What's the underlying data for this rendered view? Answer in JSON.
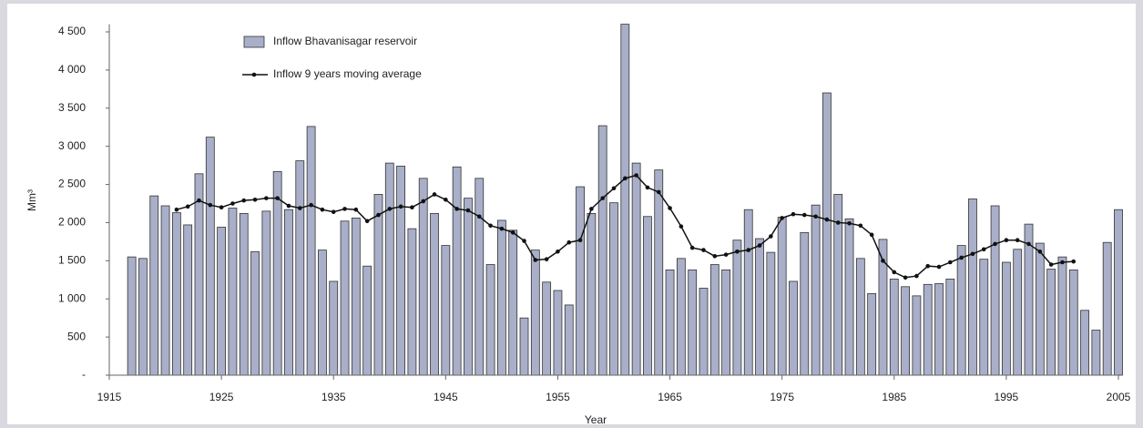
{
  "chart_data": {
    "type": "bar",
    "xlabel": "Year",
    "ylabel": "Mm³",
    "x": [
      1917,
      1918,
      1919,
      1920,
      1921,
      1922,
      1923,
      1924,
      1925,
      1926,
      1927,
      1928,
      1929,
      1930,
      1931,
      1932,
      1933,
      1934,
      1935,
      1936,
      1937,
      1938,
      1939,
      1940,
      1941,
      1942,
      1943,
      1944,
      1945,
      1946,
      1947,
      1948,
      1949,
      1950,
      1951,
      1952,
      1953,
      1954,
      1955,
      1956,
      1957,
      1958,
      1959,
      1960,
      1961,
      1962,
      1963,
      1964,
      1965,
      1966,
      1967,
      1968,
      1969,
      1970,
      1971,
      1972,
      1973,
      1974,
      1975,
      1976,
      1977,
      1978,
      1979,
      1980,
      1981,
      1982,
      1983,
      1984,
      1985,
      1986,
      1987,
      1988,
      1989,
      1990,
      1991,
      1992,
      1993,
      1994,
      1995,
      1996,
      1997,
      1998,
      1999,
      2000,
      2001,
      2002,
      2003,
      2004,
      2005
    ],
    "series": [
      {
        "name": "Inflow Bhavanisagar reservoir",
        "type": "bar",
        "color": "#a9afc9",
        "values": [
          1550,
          1530,
          2350,
          2220,
          2130,
          1970,
          2640,
          3120,
          1940,
          2190,
          2120,
          1620,
          2150,
          2670,
          2170,
          2810,
          3260,
          1640,
          1230,
          2020,
          2060,
          1430,
          2370,
          2780,
          2740,
          1920,
          2580,
          2120,
          1700,
          2730,
          2320,
          2580,
          1450,
          2030,
          1900,
          750,
          1640,
          1220,
          1110,
          920,
          2470,
          2120,
          3270,
          2260,
          4600,
          2780,
          2080,
          2690,
          1380,
          1530,
          1380,
          1140,
          1450,
          1380,
          1770,
          2170,
          1790,
          1610,
          2070,
          1230,
          1870,
          2230,
          3700,
          2370,
          2050,
          1530,
          1070,
          1780,
          1260,
          1160,
          1040,
          1190,
          1200,
          1260,
          1700,
          2310,
          1520,
          2220,
          1480,
          1650,
          1980,
          1730,
          1390,
          1550,
          1380,
          850,
          590,
          1740,
          2170
        ]
      },
      {
        "name": "Inflow 9 years moving average",
        "type": "line",
        "color": "#111111",
        "values": [
          null,
          null,
          null,
          null,
          2170,
          2210,
          2290,
          2230,
          2200,
          2250,
          2290,
          2300,
          2320,
          2320,
          2220,
          2190,
          2230,
          2170,
          2140,
          2180,
          2170,
          2020,
          2100,
          2180,
          2210,
          2200,
          2280,
          2370,
          2300,
          2180,
          2160,
          2080,
          1960,
          1920,
          1870,
          1760,
          1510,
          1520,
          1620,
          1740,
          1770,
          2180,
          2320,
          2450,
          2580,
          2620,
          2460,
          2400,
          2190,
          1950,
          1670,
          1640,
          1560,
          1580,
          1620,
          1640,
          1700,
          1820,
          2060,
          2110,
          2100,
          2080,
          2040,
          2000,
          1990,
          1960,
          1840,
          1500,
          1350,
          1280,
          1300,
          1430,
          1420,
          1480,
          1540,
          1590,
          1650,
          1720,
          1770,
          1770,
          1720,
          1620,
          1450,
          1480,
          1490,
          null,
          null,
          null,
          null
        ]
      }
    ],
    "xlim": [
      1915,
      2005
    ],
    "xticks": [
      1915,
      1925,
      1935,
      1945,
      1955,
      1965,
      1975,
      1985,
      1995,
      2005
    ],
    "ylim": [
      0,
      4600
    ],
    "yticks": [
      {
        "value": 0,
        "label": "-"
      },
      500,
      {
        "value": 1000,
        "label": "1 000"
      },
      {
        "value": 1500,
        "label": "1 500"
      },
      {
        "value": 2000,
        "label": "2 000"
      },
      {
        "value": 2500,
        "label": "2 500"
      },
      {
        "value": 3000,
        "label": "3 000"
      },
      {
        "value": 3500,
        "label": "3 500"
      },
      {
        "value": 4000,
        "label": "4 000"
      },
      {
        "value": 4500,
        "label": "4 500"
      }
    ],
    "legend": "top-left",
    "grid": false
  }
}
